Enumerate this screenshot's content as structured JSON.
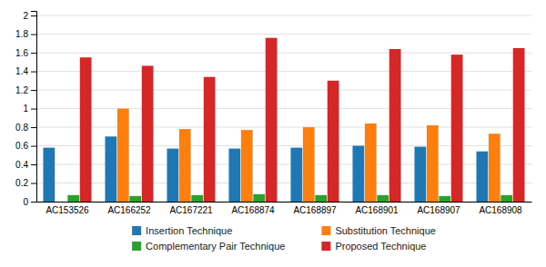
{
  "chart_data": {
    "type": "bar",
    "categories": [
      "AC153526",
      "AC166252",
      "AC167221",
      "AC168874",
      "AC168897",
      "AC168901",
      "AC168907",
      "AC168908"
    ],
    "series": [
      {
        "name": "Insertion Technique",
        "values": [
          0.58,
          0.7,
          0.57,
          0.57,
          0.58,
          0.6,
          0.59,
          0.54
        ]
      },
      {
        "name": "Substitution Technique",
        "values": [
          0.0,
          1.0,
          0.78,
          0.77,
          0.8,
          0.84,
          0.82,
          0.73
        ]
      },
      {
        "name": "Complementary Pair Technique",
        "values": [
          0.07,
          0.06,
          0.07,
          0.08,
          0.07,
          0.07,
          0.06,
          0.07
        ]
      },
      {
        "name": "Proposed Technique",
        "values": [
          1.55,
          1.46,
          1.34,
          1.76,
          1.3,
          1.64,
          1.58,
          1.65
        ]
      }
    ],
    "ylim": [
      0,
      2.05
    ],
    "yticks": [
      0,
      0.2,
      0.4,
      0.6,
      0.8,
      1,
      1.2,
      1.4,
      1.6,
      1.8,
      2
    ],
    "grid": true,
    "legend": "bottom"
  }
}
